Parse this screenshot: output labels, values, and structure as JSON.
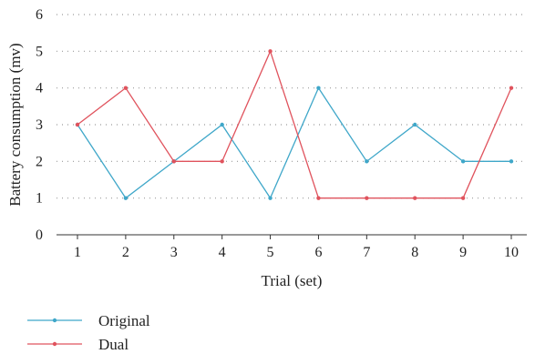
{
  "chart_data": {
    "type": "line",
    "xlabel": "Trial (set)",
    "ylabel": "Battery consumption (mv)",
    "x": [
      1,
      2,
      3,
      4,
      5,
      6,
      7,
      8,
      9,
      10
    ],
    "ylim": [
      0,
      6
    ],
    "yticks": [
      0,
      1,
      2,
      3,
      4,
      5,
      6
    ],
    "grid": true,
    "legend_position": "bottom-left",
    "series": [
      {
        "name": "Original",
        "color": "#3fa7c9",
        "values": [
          3,
          1,
          2,
          3,
          1,
          4,
          2,
          3,
          2,
          2
        ]
      },
      {
        "name": "Dual",
        "color": "#e0535d",
        "values": [
          3,
          4,
          2,
          2,
          5,
          1,
          1,
          1,
          1,
          4
        ]
      }
    ]
  }
}
